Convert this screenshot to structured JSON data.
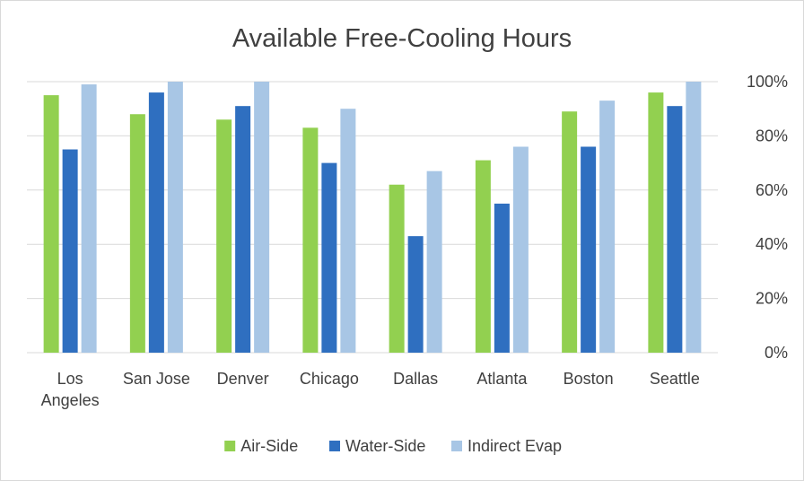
{
  "chart_data": {
    "type": "bar",
    "title": "Available Free-Cooling Hours",
    "xlabel": "",
    "ylabel": "",
    "categories": [
      [
        "Los",
        "Angeles"
      ],
      [
        "San Jose"
      ],
      [
        "Denver"
      ],
      [
        "Chicago"
      ],
      [
        "Dallas"
      ],
      [
        "Atlanta"
      ],
      [
        "Boston"
      ],
      [
        "Seattle"
      ]
    ],
    "series": [
      {
        "name": "Air-Side",
        "color": "#92d050",
        "values": [
          95,
          88,
          86,
          83,
          62,
          71,
          89,
          96
        ]
      },
      {
        "name": "Water-Side",
        "color": "#2f6fc0",
        "values": [
          75,
          96,
          91,
          70,
          43,
          55,
          76,
          91
        ]
      },
      {
        "name": "Indirect Evap",
        "color": "#a8c6e5",
        "values": [
          99,
          100,
          100,
          90,
          67,
          76,
          93,
          100
        ]
      }
    ],
    "ylim": [
      0,
      100
    ],
    "yticks": [
      0,
      20,
      40,
      60,
      80,
      100
    ],
    "ytick_labels": [
      "0%",
      "20%",
      "40%",
      "60%",
      "80%",
      "100%"
    ],
    "y_axis_side": "right",
    "grid": true,
    "legend": "bottom"
  }
}
